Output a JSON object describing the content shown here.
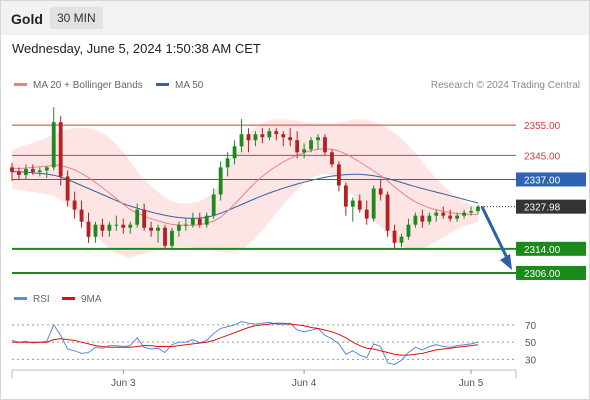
{
  "header": {
    "symbol": "Gold",
    "timeframe": "30 MIN",
    "datetime": "Wednesday, June 5, 2024 1:50:38 AM CET"
  },
  "legend": {
    "ma20_label": "MA 20 + Bollinger Bands",
    "ma50_label": "MA 50",
    "credit": "Research © 2024 Trading Central",
    "rsi_label": "RSI",
    "ma9_label": "9MA"
  },
  "colors": {
    "ma20": "#f08080",
    "bollinger_fill": "#fde0e0",
    "ma50": "#3a5f9e",
    "candle_up": "#1e8a1e",
    "candle_down": "#b52121",
    "resistance": "#d73a3a",
    "pivot": "#2f64b3",
    "support": "#1a8a1a",
    "current": "#333333",
    "arrow": "#2e5fa8",
    "rsi": "#5b8ae0",
    "rsi_ma": "#e01010"
  },
  "levels": [
    {
      "type": "resistance",
      "value": 2355.0,
      "label": "2355.00"
    },
    {
      "type": "resistance",
      "value": 2345.0,
      "label": "2345.00"
    },
    {
      "type": "pivot",
      "value": 2337.0,
      "label": "2337.00"
    },
    {
      "type": "current",
      "value": 2327.98,
      "label": "2327.98"
    },
    {
      "type": "support",
      "value": 2314.0,
      "label": "2314.00"
    },
    {
      "type": "support",
      "value": 2306.0,
      "label": "2306.00"
    }
  ],
  "chart_data": {
    "type": "candlestick",
    "x_labels": [
      "Jun 3",
      "Jun 4",
      "Jun 5"
    ],
    "x_label_index": [
      16,
      42,
      66
    ],
    "ylim": [
      2303,
      2365
    ],
    "candles": [
      [
        2341.0,
        2342.5,
        2336.5,
        2339.5
      ],
      [
        2339.5,
        2341.0,
        2337.0,
        2338.5
      ],
      [
        2338.5,
        2342.0,
        2337.0,
        2340.5
      ],
      [
        2340.5,
        2342.0,
        2338.5,
        2339.5
      ],
      [
        2339.5,
        2341.0,
        2338.0,
        2340.0
      ],
      [
        2340.0,
        2341.5,
        2337.5,
        2341.0
      ],
      [
        2341.0,
        2361.0,
        2340.0,
        2356.0
      ],
      [
        2356.0,
        2358.0,
        2335.0,
        2338.0
      ],
      [
        2338.0,
        2340.0,
        2328.0,
        2330.0
      ],
      [
        2330.0,
        2333.0,
        2324.0,
        2327.0
      ],
      [
        2327.0,
        2330.0,
        2321.0,
        2323.0
      ],
      [
        2323.0,
        2326.0,
        2316.0,
        2318.0
      ],
      [
        2318.0,
        2323.0,
        2316.0,
        2322.0
      ],
      [
        2322.0,
        2324.0,
        2318.0,
        2320.0
      ],
      [
        2320.0,
        2323.0,
        2318.0,
        2322.0
      ],
      [
        2322.0,
        2325.0,
        2320.0,
        2322.0
      ],
      [
        2322.0,
        2324.0,
        2319.0,
        2321.0
      ],
      [
        2321.0,
        2323.0,
        2319.0,
        2322.0
      ],
      [
        2322.0,
        2329.0,
        2321.0,
        2327.0
      ],
      [
        2327.0,
        2329.0,
        2320.0,
        2321.0
      ],
      [
        2321.0,
        2323.0,
        2318.0,
        2320.0
      ],
      [
        2320.0,
        2322.0,
        2316.0,
        2321.0
      ],
      [
        2321.0,
        2322.0,
        2314.0,
        2315.0
      ],
      [
        2315.0,
        2321.0,
        2314.0,
        2320.0
      ],
      [
        2320.0,
        2323.0,
        2318.0,
        2322.0
      ],
      [
        2322.0,
        2324.0,
        2320.0,
        2322.0
      ],
      [
        2322.0,
        2326.0,
        2321.0,
        2324.0
      ],
      [
        2324.0,
        2326.0,
        2321.0,
        2322.0
      ],
      [
        2322.0,
        2326.0,
        2321.0,
        2325.0
      ],
      [
        2325.0,
        2334.0,
        2324.0,
        2332.0
      ],
      [
        2332.0,
        2343.0,
        2330.0,
        2341.0
      ],
      [
        2341.0,
        2346.0,
        2338.0,
        2344.0
      ],
      [
        2344.0,
        2350.0,
        2342.0,
        2348.0
      ],
      [
        2348.0,
        2357.0,
        2346.0,
        2352.0
      ],
      [
        2352.0,
        2354.0,
        2346.0,
        2350.0
      ],
      [
        2350.0,
        2353.0,
        2348.0,
        2352.0
      ],
      [
        2352.0,
        2354.0,
        2349.0,
        2351.0
      ],
      [
        2351.0,
        2354.0,
        2350.0,
        2353.0
      ],
      [
        2353.0,
        2354.0,
        2350.0,
        2352.0
      ],
      [
        2352.0,
        2353.0,
        2348.0,
        2351.0
      ],
      [
        2351.0,
        2354.0,
        2348.0,
        2350.0
      ],
      [
        2350.0,
        2353.0,
        2344.0,
        2346.0
      ],
      [
        2346.0,
        2349.0,
        2344.0,
        2347.0
      ],
      [
        2347.0,
        2351.0,
        2346.0,
        2350.0
      ],
      [
        2350.0,
        2352.0,
        2347.0,
        2351.0
      ],
      [
        2351.0,
        2352.0,
        2345.0,
        2346.0
      ],
      [
        2346.0,
        2347.0,
        2341.0,
        2342.0
      ],
      [
        2342.0,
        2343.0,
        2333.0,
        2335.0
      ],
      [
        2335.0,
        2336.0,
        2325.0,
        2328.0
      ],
      [
        2328.0,
        2331.0,
        2323.0,
        2330.0
      ],
      [
        2330.0,
        2332.0,
        2326.0,
        2327.0
      ],
      [
        2327.0,
        2330.0,
        2322.0,
        2324.0
      ],
      [
        2324.0,
        2335.0,
        2323.0,
        2334.0
      ],
      [
        2334.0,
        2337.0,
        2330.0,
        2332.0
      ],
      [
        2332.0,
        2333.0,
        2318.0,
        2320.0
      ],
      [
        2320.0,
        2322.0,
        2314.0,
        2316.0
      ],
      [
        2316.0,
        2319.0,
        2314.5,
        2318.0
      ],
      [
        2318.0,
        2324.0,
        2317.0,
        2322.0
      ],
      [
        2322.0,
        2326.0,
        2321.0,
        2325.0
      ],
      [
        2325.0,
        2327.0,
        2321.0,
        2323.0
      ],
      [
        2323.0,
        2326.0,
        2322.0,
        2325.0
      ],
      [
        2325.0,
        2327.0,
        2323.0,
        2326.0
      ],
      [
        2326.0,
        2328.0,
        2324.0,
        2325.0
      ],
      [
        2325.0,
        2327.0,
        2323.0,
        2324.0
      ],
      [
        2324.0,
        2326.0,
        2323.0,
        2325.0
      ],
      [
        2325.0,
        2327.0,
        2324.0,
        2326.0
      ],
      [
        2326.0,
        2328.0,
        2325.0,
        2326.5
      ],
      [
        2326.5,
        2328.5,
        2325.5,
        2327.98
      ]
    ],
    "ma20": [
      2340.5,
      2340.6,
      2340.8,
      2341.0,
      2341.2,
      2341.4,
      2341.8,
      2341.6,
      2341.0,
      2340.2,
      2339.0,
      2337.6,
      2336.0,
      2334.3,
      2332.5,
      2330.6,
      2328.8,
      2327.0,
      2325.8,
      2324.8,
      2324.0,
      2323.3,
      2322.6,
      2322.1,
      2321.9,
      2321.8,
      2321.8,
      2322.0,
      2322.5,
      2323.2,
      2324.5,
      2326.5,
      2328.8,
      2331.2,
      2333.7,
      2336.0,
      2338.0,
      2339.8,
      2341.4,
      2342.8,
      2344.0,
      2345.0,
      2345.9,
      2346.6,
      2347.0,
      2347.2,
      2347.0,
      2346.4,
      2345.4,
      2344.2,
      2342.8,
      2341.3,
      2339.8,
      2338.3,
      2336.5,
      2334.6,
      2332.7,
      2331.0,
      2329.6,
      2328.5,
      2327.6,
      2326.9,
      2326.4,
      2326.0,
      2325.7,
      2325.5,
      2325.4,
      2325.4
    ],
    "bb_upper": [
      2347.0,
      2347.6,
      2348.4,
      2349.2,
      2350.0,
      2350.8,
      2352.0,
      2353.0,
      2353.6,
      2354.0,
      2354.2,
      2354.0,
      2353.4,
      2352.4,
      2350.8,
      2348.6,
      2346.0,
      2343.0,
      2339.8,
      2337.2,
      2334.8,
      2332.8,
      2331.0,
      2329.8,
      2329.2,
      2329.0,
      2329.2,
      2329.8,
      2331.0,
      2333.0,
      2336.0,
      2340.0,
      2344.5,
      2348.8,
      2352.0,
      2354.4,
      2355.8,
      2356.6,
      2357.0,
      2357.0,
      2356.8,
      2356.4,
      2356.0,
      2355.8,
      2355.7,
      2355.6,
      2355.6,
      2355.8,
      2356.2,
      2356.8,
      2357.0,
      2356.8,
      2356.2,
      2355.2,
      2354.0,
      2352.4,
      2350.4,
      2348.2,
      2345.6,
      2342.8,
      2340.0,
      2337.4,
      2335.0,
      2332.8,
      2331.0,
      2329.6,
      2328.6,
      2328.0
    ],
    "bb_lower": [
      2334.0,
      2333.6,
      2333.2,
      2332.8,
      2332.4,
      2332.0,
      2331.6,
      2330.2,
      2328.4,
      2326.4,
      2323.8,
      2321.2,
      2318.6,
      2316.2,
      2314.2,
      2312.6,
      2311.6,
      2311.0,
      2311.8,
      2312.4,
      2313.2,
      2313.8,
      2314.2,
      2314.4,
      2314.6,
      2314.6,
      2314.4,
      2314.2,
      2314.0,
      2313.4,
      2313.0,
      2313.0,
      2313.1,
      2313.6,
      2315.4,
      2317.6,
      2320.2,
      2323.0,
      2325.8,
      2328.6,
      2331.2,
      2333.6,
      2335.8,
      2337.4,
      2338.3,
      2338.8,
      2338.4,
      2337.0,
      2334.6,
      2331.6,
      2328.6,
      2325.8,
      2323.4,
      2321.4,
      2319.0,
      2316.8,
      2315.0,
      2313.8,
      2313.6,
      2314.2,
      2315.2,
      2316.4,
      2317.8,
      2319.2,
      2320.4,
      2321.4,
      2322.2,
      2322.8
    ],
    "ma50": [
      2339.5,
      2339.6,
      2339.4,
      2339.2,
      2339.0,
      2338.8,
      2338.4,
      2337.8,
      2337.0,
      2336.0,
      2335.0,
      2334.0,
      2333.0,
      2332.0,
      2331.0,
      2330.0,
      2329.0,
      2328.2,
      2327.5,
      2326.8,
      2326.2,
      2325.6,
      2325.1,
      2324.7,
      2324.4,
      2324.2,
      2324.1,
      2324.2,
      2324.5,
      2325.0,
      2325.8,
      2326.7,
      2327.7,
      2328.7,
      2329.7,
      2330.7,
      2331.6,
      2332.5,
      2333.3,
      2334.1,
      2334.8,
      2335.5,
      2336.1,
      2336.7,
      2337.2,
      2337.7,
      2338.1,
      2338.4,
      2338.6,
      2338.7,
      2338.7,
      2338.5,
      2338.2,
      2337.8,
      2337.3,
      2336.7,
      2336.0,
      2335.3,
      2334.6,
      2334.0,
      2333.4,
      2332.8,
      2332.2,
      2331.6,
      2331.0,
      2330.4,
      2329.8,
      2329.2
    ],
    "rsi_ylim": [
      20,
      85
    ],
    "rsi_ticks": [
      70,
      50,
      30
    ],
    "rsi": [
      52,
      50,
      51,
      49,
      50,
      51,
      70,
      58,
      42,
      40,
      37,
      38,
      44,
      43,
      46,
      46,
      45,
      46,
      55,
      44,
      42,
      43,
      38,
      47,
      50,
      50,
      53,
      49,
      52,
      60,
      66,
      68,
      70,
      74,
      72,
      71,
      72,
      73,
      71,
      70,
      72,
      64,
      62,
      64,
      66,
      58,
      54,
      48,
      36,
      40,
      35,
      32,
      48,
      45,
      26,
      24,
      29,
      38,
      44,
      41,
      45,
      47,
      45,
      44,
      46,
      47,
      48,
      50
    ],
    "rsi_ma": [
      50,
      50,
      50,
      50,
      50,
      50,
      53,
      54,
      53,
      52,
      50,
      48,
      46,
      45,
      44,
      44,
      44,
      44,
      45,
      46,
      46,
      45,
      45,
      45,
      46,
      47,
      48,
      49,
      50,
      52,
      55,
      58,
      61,
      64,
      67,
      69,
      70,
      71,
      72,
      72,
      71,
      70,
      69,
      67,
      66,
      64,
      62,
      59,
      55,
      50,
      46,
      43,
      42,
      40,
      38,
      36,
      35,
      35,
      36,
      37,
      39,
      41,
      42,
      43,
      44,
      45,
      46,
      47
    ]
  }
}
